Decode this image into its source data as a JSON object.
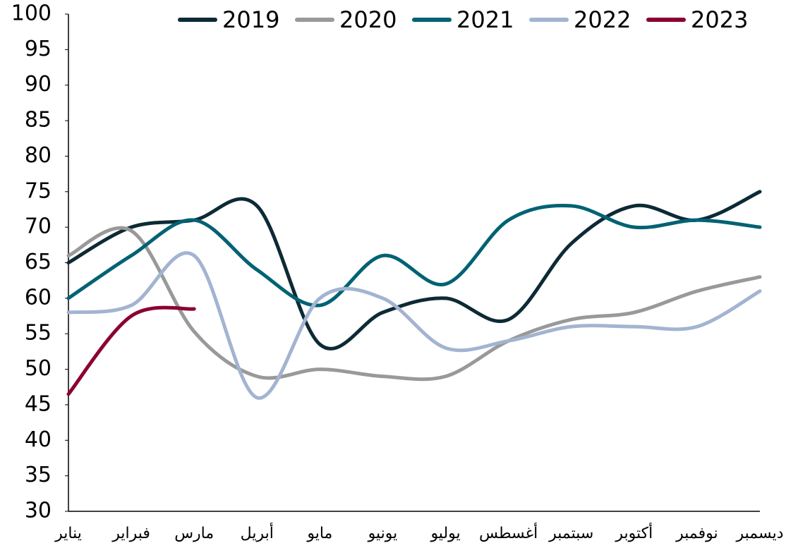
{
  "chart_data": {
    "type": "line",
    "categories": [
      "يناير",
      "فبراير",
      "مارس",
      "أبريل",
      "مايو",
      "يونيو",
      "يوليو",
      "أغسطس",
      "سبتمبر",
      "أكتوبر",
      "نوفمبر",
      "ديسمبر"
    ],
    "series": [
      {
        "name": "2019",
        "color": "#0d2a36",
        "values": [
          65,
          70,
          71,
          73,
          53.5,
          58,
          60,
          57,
          67.7,
          73,
          71,
          75
        ]
      },
      {
        "name": "2020",
        "color": "#999999",
        "values": [
          66,
          69.5,
          55.3,
          49,
          50,
          49,
          49,
          54,
          57,
          58,
          61,
          63
        ]
      },
      {
        "name": "2021",
        "color": "#006273",
        "values": [
          60,
          66,
          71,
          64,
          59,
          66,
          62,
          71,
          73,
          70,
          71,
          70
        ]
      },
      {
        "name": "2022",
        "color": "#a3b4d1",
        "values": [
          58,
          59,
          66,
          46,
          60,
          60,
          53,
          54,
          56,
          56,
          56,
          61
        ]
      },
      {
        "name": "2023",
        "color": "#8b0032",
        "values": [
          46.5,
          57.5,
          58.5,
          null,
          null,
          null,
          null,
          null,
          null,
          null,
          null,
          null
        ]
      }
    ],
    "ylim": [
      30,
      100
    ],
    "yticks": [
      30,
      35,
      40,
      45,
      50,
      55,
      60,
      65,
      70,
      75,
      80,
      85,
      90,
      95,
      100
    ],
    "legend": "top"
  }
}
